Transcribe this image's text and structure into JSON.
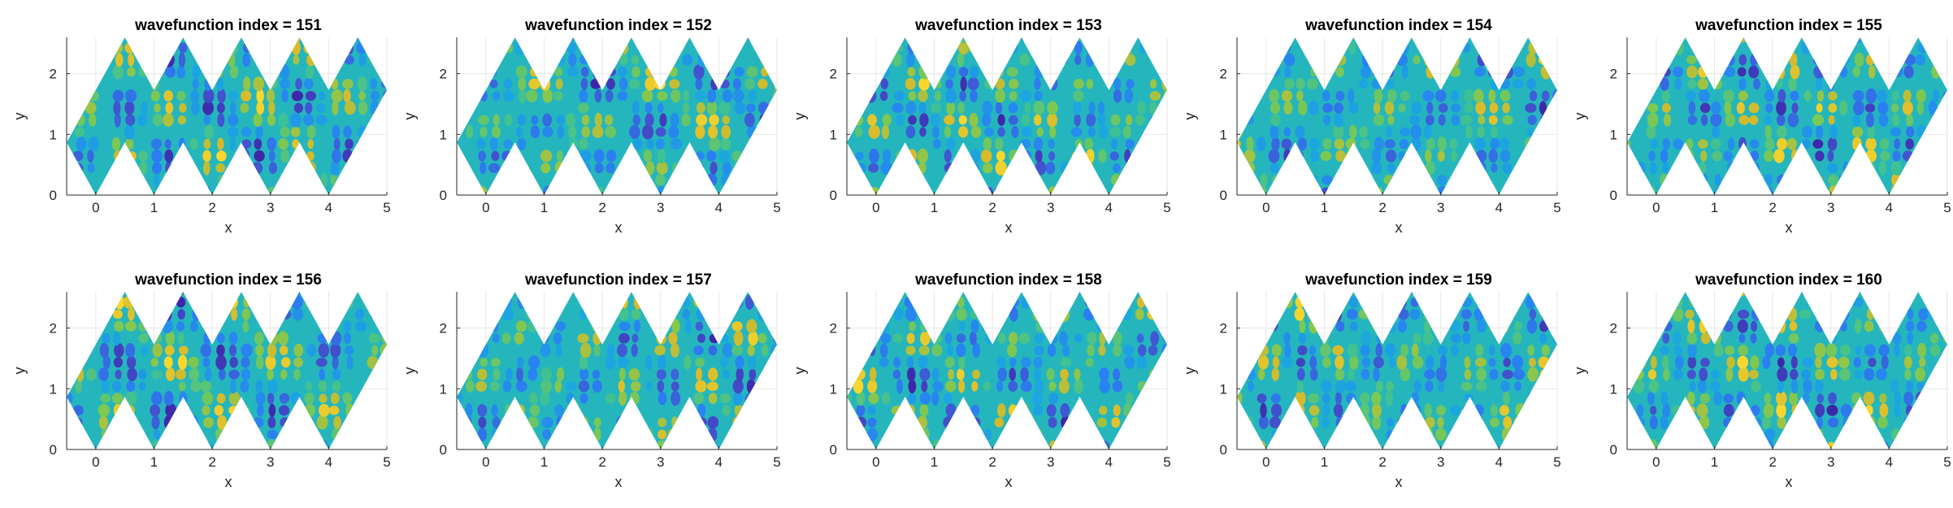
{
  "chart_data": [
    {
      "type": "heatmap",
      "title": "wavefunction index = 151",
      "xlabel": "x",
      "ylabel": "y",
      "xlim": [
        -0.5,
        5
      ],
      "ylim": [
        0,
        2.598
      ],
      "xticks": [
        "0",
        "1",
        "2",
        "3",
        "4",
        "5"
      ],
      "yticks": [
        "0",
        "1",
        "2"
      ],
      "grid": true,
      "colormap": "parula",
      "seed": 151
    },
    {
      "type": "heatmap",
      "title": "wavefunction index = 152",
      "xlabel": "x",
      "ylabel": "y",
      "xlim": [
        -0.5,
        5
      ],
      "ylim": [
        0,
        2.598
      ],
      "xticks": [
        "0",
        "1",
        "2",
        "3",
        "4",
        "5"
      ],
      "yticks": [
        "0",
        "1",
        "2"
      ],
      "grid": true,
      "colormap": "parula",
      "seed": 152
    },
    {
      "type": "heatmap",
      "title": "wavefunction index = 153",
      "xlabel": "x",
      "ylabel": "y",
      "xlim": [
        -0.5,
        5
      ],
      "ylim": [
        0,
        2.598
      ],
      "xticks": [
        "0",
        "1",
        "2",
        "3",
        "4",
        "5"
      ],
      "yticks": [
        "0",
        "1",
        "2"
      ],
      "grid": true,
      "colormap": "parula",
      "seed": 153
    },
    {
      "type": "heatmap",
      "title": "wavefunction index = 154",
      "xlabel": "x",
      "ylabel": "y",
      "xlim": [
        -0.5,
        5
      ],
      "ylim": [
        0,
        2.598
      ],
      "xticks": [
        "0",
        "1",
        "2",
        "3",
        "4",
        "5"
      ],
      "yticks": [
        "0",
        "1",
        "2"
      ],
      "grid": true,
      "colormap": "parula",
      "seed": 154
    },
    {
      "type": "heatmap",
      "title": "wavefunction index = 155",
      "xlabel": "x",
      "ylabel": "y",
      "xlim": [
        -0.5,
        5
      ],
      "ylim": [
        0,
        2.598
      ],
      "xticks": [
        "0",
        "1",
        "2",
        "3",
        "4",
        "5"
      ],
      "yticks": [
        "0",
        "1",
        "2"
      ],
      "grid": true,
      "colormap": "parula",
      "seed": 155
    },
    {
      "type": "heatmap",
      "title": "wavefunction index = 156",
      "xlabel": "x",
      "ylabel": "y",
      "xlim": [
        -0.5,
        5
      ],
      "ylim": [
        0,
        2.598
      ],
      "xticks": [
        "0",
        "1",
        "2",
        "3",
        "4",
        "5"
      ],
      "yticks": [
        "0",
        "1",
        "2"
      ],
      "grid": true,
      "colormap": "parula",
      "seed": 156
    },
    {
      "type": "heatmap",
      "title": "wavefunction index = 157",
      "xlabel": "x",
      "ylabel": "y",
      "xlim": [
        -0.5,
        5
      ],
      "ylim": [
        0,
        2.598
      ],
      "xticks": [
        "0",
        "1",
        "2",
        "3",
        "4",
        "5"
      ],
      "yticks": [
        "0",
        "1",
        "2"
      ],
      "grid": true,
      "colormap": "parula",
      "seed": 157
    },
    {
      "type": "heatmap",
      "title": "wavefunction index = 158",
      "xlabel": "x",
      "ylabel": "y",
      "xlim": [
        -0.5,
        5
      ],
      "ylim": [
        0,
        2.598
      ],
      "xticks": [
        "0",
        "1",
        "2",
        "3",
        "4",
        "5"
      ],
      "yticks": [
        "0",
        "1",
        "2"
      ],
      "grid": true,
      "colormap": "parula",
      "seed": 158
    },
    {
      "type": "heatmap",
      "title": "wavefunction index = 159",
      "xlabel": "x",
      "ylabel": "y",
      "xlim": [
        -0.5,
        5
      ],
      "ylim": [
        0,
        2.598
      ],
      "xticks": [
        "0",
        "1",
        "2",
        "3",
        "4",
        "5"
      ],
      "yticks": [
        "0",
        "1",
        "2"
      ],
      "grid": true,
      "colormap": "parula",
      "seed": 159
    },
    {
      "type": "heatmap",
      "title": "wavefunction index = 160",
      "xlabel": "x",
      "ylabel": "y",
      "xlim": [
        -0.5,
        5
      ],
      "ylim": [
        0,
        2.598
      ],
      "xticks": [
        "0",
        "1",
        "2",
        "3",
        "4",
        "5"
      ],
      "yticks": [
        "0",
        "1",
        "2"
      ],
      "grid": true,
      "colormap": "parula",
      "seed": 160
    }
  ],
  "domain_shape": {
    "bottom_vertices_x": [
      -0.5,
      0,
      1,
      2,
      3,
      4,
      5
    ],
    "bottom_notch_tips": [
      [
        0.5,
        0.866
      ],
      [
        1.5,
        0.866
      ],
      [
        2.5,
        0.866
      ],
      [
        3.5,
        0.866
      ]
    ],
    "top_peaks": [
      [
        0.5,
        2.598
      ],
      [
        1.5,
        2.598
      ],
      [
        2.5,
        2.598
      ],
      [
        3.5,
        2.598
      ],
      [
        4.5,
        2.598
      ]
    ],
    "top_valleys": [
      [
        1.0,
        1.732
      ],
      [
        2.0,
        1.732
      ],
      [
        3.0,
        1.732
      ],
      [
        4.0,
        1.732
      ]
    ],
    "left_corner": [
      -0.5,
      0.866
    ],
    "right_corner": [
      5.0,
      1.732
    ]
  },
  "colors": {
    "parula": [
      "#3e26a8",
      "#4352ce",
      "#2a7ff2",
      "#1ba6e0",
      "#2bbfa9",
      "#7dc852",
      "#d6ba2c",
      "#f9d72c"
    ],
    "grid": "#e6e6e6",
    "axis": "#262626"
  }
}
